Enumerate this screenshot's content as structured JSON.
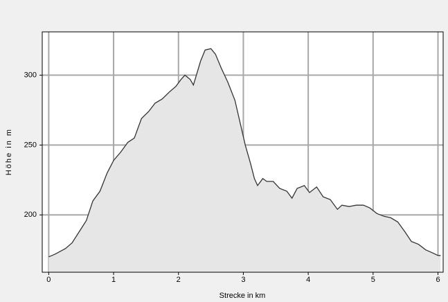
{
  "chart_data": {
    "type": "area",
    "x_label": "Strecke in km",
    "y_label": "Höhe in m",
    "x": [
      0,
      0.1,
      0.26,
      0.36,
      0.47,
      0.58,
      0.68,
      0.79,
      0.9,
      1.0,
      1.11,
      1.22,
      1.32,
      1.43,
      1.54,
      1.64,
      1.75,
      1.86,
      1.96,
      2.04,
      2.1,
      2.18,
      2.23,
      2.27,
      2.34,
      2.41,
      2.5,
      2.57,
      2.66,
      2.76,
      2.87,
      2.96,
      3.03,
      3.11,
      3.17,
      3.22,
      3.3,
      3.36,
      3.46,
      3.56,
      3.67,
      3.75,
      3.83,
      3.94,
      4.02,
      4.13,
      4.23,
      4.34,
      4.45,
      4.52,
      4.63,
      4.74,
      4.85,
      4.95,
      5.06,
      5.17,
      5.27,
      5.38,
      5.49,
      5.59,
      5.7,
      5.81,
      5.91,
      6.0,
      6.04
    ],
    "values": [
      170,
      172,
      176,
      180,
      188,
      196,
      210,
      217,
      230,
      239,
      245,
      252,
      255,
      269,
      274,
      280,
      283,
      288,
      292,
      297,
      300,
      297,
      293,
      299,
      310,
      318,
      319,
      315,
      305,
      295,
      282,
      264,
      250,
      237,
      226,
      221,
      226,
      224,
      224,
      219,
      217,
      212,
      219,
      221,
      216,
      220,
      213,
      211,
      204,
      207,
      206,
      207,
      207,
      205,
      201,
      199,
      198,
      195,
      188,
      181,
      179,
      175,
      173,
      171,
      171
    ],
    "color": "#333333",
    "fill": "#e6e6e6",
    "xlim": [
      -0.1,
      6.08
    ],
    "ylim": [
      159,
      331
    ],
    "xticks": [
      0,
      1,
      2,
      3,
      4,
      5,
      6
    ],
    "yticks": [
      200,
      250,
      300
    ],
    "grid": true
  }
}
